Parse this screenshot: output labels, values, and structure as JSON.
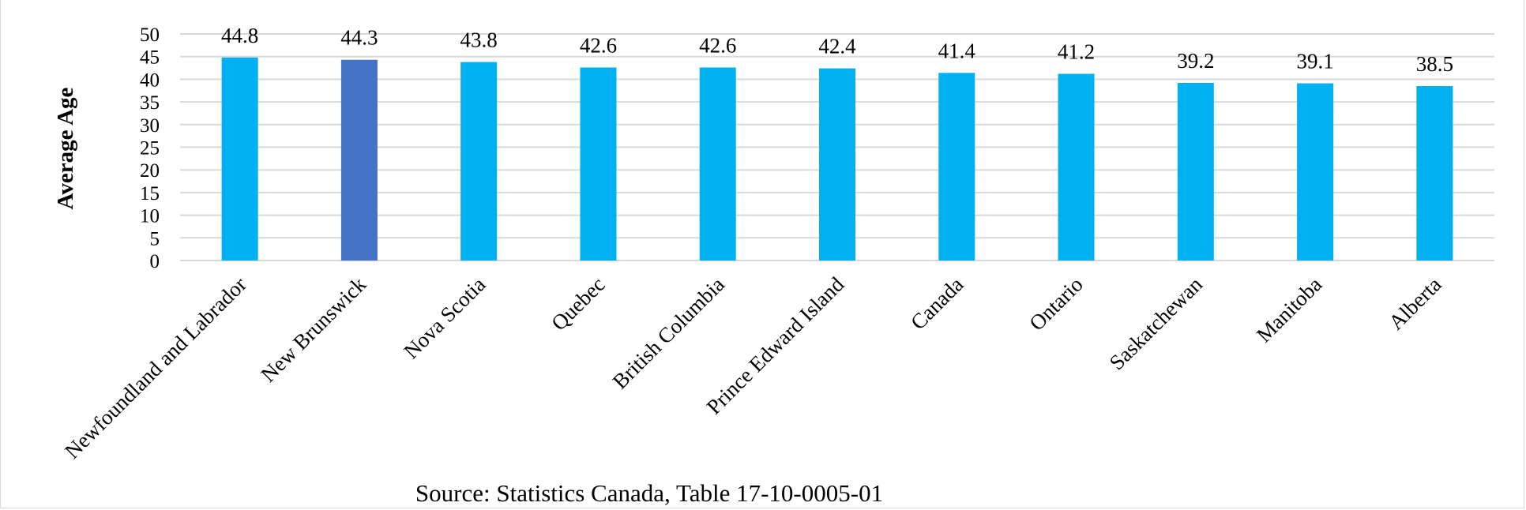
{
  "chart_data": {
    "type": "bar",
    "categories": [
      "Newfoundland and Labrador",
      "New Brunswick",
      "Nova Scotia",
      "Quebec",
      "British Columbia",
      "Prince Edward Island",
      "Canada",
      "Ontario",
      "Saskatchewan",
      "Manitoba",
      "Alberta"
    ],
    "values": [
      44.8,
      44.3,
      43.8,
      42.6,
      42.6,
      42.4,
      41.4,
      41.2,
      39.2,
      39.1,
      38.5
    ],
    "data_labels": [
      "44.8",
      "44.3",
      "43.8",
      "42.6",
      "42.6",
      "42.4",
      "41.4",
      "41.2",
      "39.2",
      "39.1",
      "38.5"
    ],
    "highlight_index": 1,
    "ylabel": "Average Age",
    "xlabel": "",
    "ylim": [
      0,
      50
    ],
    "yticks": [
      0,
      5,
      10,
      15,
      20,
      25,
      30,
      35,
      40,
      45,
      50
    ],
    "grid": true,
    "legend": "none",
    "colors": {
      "bar": "#00B0F0",
      "highlight": "#4472C4",
      "grid": "#d9d9d9"
    }
  },
  "source_note": "Source: Statistics Canada, Table 17-10-0005-01"
}
